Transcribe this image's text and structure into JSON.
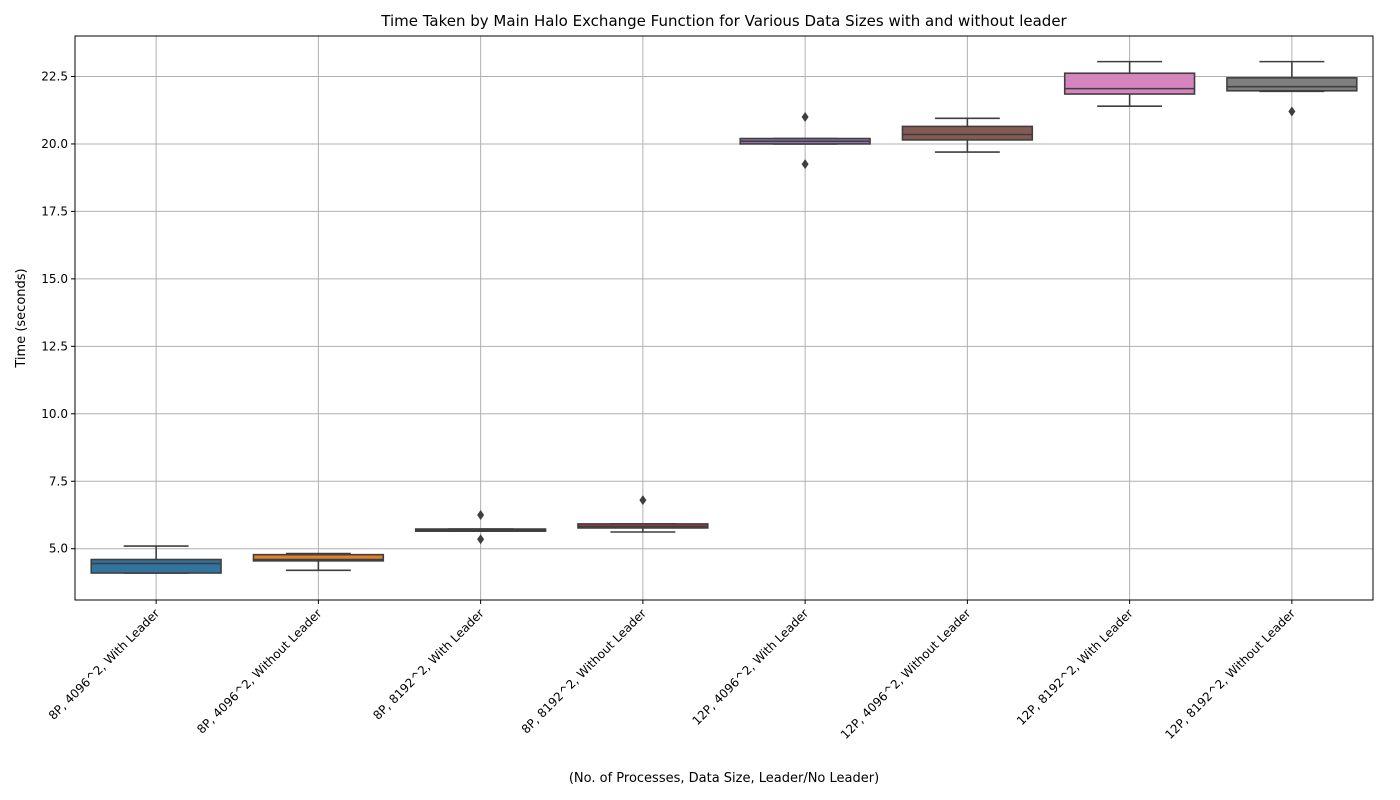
{
  "chart_data": {
    "type": "box",
    "title": "Time Taken by Main Halo Exchange Function for Various Data Sizes with and without leader",
    "xlabel": "(No. of Processes, Data Size, Leader/No Leader)",
    "ylabel": "Time (seconds)",
    "ylim": [
      3.1,
      24.0
    ],
    "yticks": [
      5.0,
      7.5,
      10.0,
      12.5,
      15.0,
      17.5,
      20.0,
      22.5
    ],
    "ytick_labels": [
      "5.0",
      "7.5",
      "10.0",
      "12.5",
      "15.0",
      "17.5",
      "20.0",
      "22.5"
    ],
    "grid": true,
    "categories": [
      "8P, 4096^2, With Leader",
      "8P, 4096^2, Without Leader",
      "8P, 8192^2, With Leader",
      "8P, 8192^2, Without Leader",
      "12P, 4096^2, With Leader",
      "12P, 4096^2, Without Leader",
      "12P, 8192^2, With Leader",
      "12P, 8192^2, Without Leader"
    ],
    "boxes": [
      {
        "whisker_low": 4.1,
        "q1": 4.1,
        "median": 4.45,
        "q3": 4.6,
        "whisker_high": 5.1,
        "outliers": [],
        "color": "#3274a1"
      },
      {
        "whisker_low": 4.2,
        "q1": 4.55,
        "median": 4.6,
        "q3": 4.78,
        "whisker_high": 4.82,
        "outliers": [],
        "color": "#e1812c"
      },
      {
        "whisker_low": 5.65,
        "q1": 5.65,
        "median": 5.7,
        "q3": 5.73,
        "whisker_high": 5.73,
        "outliers": [
          6.25,
          5.35
        ],
        "color": "#3a923a"
      },
      {
        "whisker_low": 5.62,
        "q1": 5.77,
        "median": 5.83,
        "q3": 5.92,
        "whisker_high": 5.92,
        "outliers": [
          6.8
        ],
        "color": "#c03d3e"
      },
      {
        "whisker_low": 20.0,
        "q1": 20.0,
        "median": 20.1,
        "q3": 20.2,
        "whisker_high": 20.2,
        "outliers": [
          21.0,
          19.25
        ],
        "color": "#9372b2"
      },
      {
        "whisker_low": 19.7,
        "q1": 20.15,
        "median": 20.35,
        "q3": 20.65,
        "whisker_high": 20.95,
        "outliers": [],
        "color": "#845b53"
      },
      {
        "whisker_low": 21.4,
        "q1": 21.85,
        "median": 22.05,
        "q3": 22.62,
        "whisker_high": 23.05,
        "outliers": [],
        "color": "#d684bd"
      },
      {
        "whisker_low": 21.95,
        "q1": 21.97,
        "median": 22.12,
        "q3": 22.45,
        "whisker_high": 23.05,
        "outliers": [
          21.2
        ],
        "color": "#7f7f7f"
      }
    ]
  }
}
